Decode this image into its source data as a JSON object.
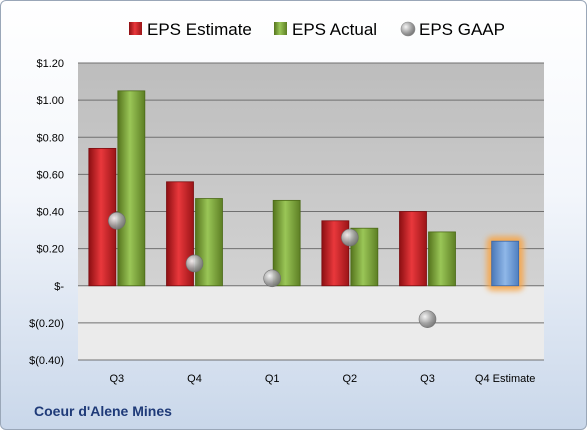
{
  "company": "Coeur d'Alene Mines",
  "chart_data": {
    "type": "bar",
    "categories": [
      "Q3",
      "Q4",
      "Q1",
      "Q2",
      "Q3",
      "Q4 Estimate"
    ],
    "y_tick_labels": [
      "$(0.40)",
      "$(0.20)",
      "$-",
      "$0.20",
      "$0.40",
      "$0.60",
      "$0.80",
      "$1.00",
      "$1.20"
    ],
    "ylim": [
      -0.4,
      1.2
    ],
    "series": [
      {
        "name": "EPS Estimate",
        "color": "#d8262b",
        "values": [
          0.74,
          0.56,
          null,
          0.35,
          0.4,
          null
        ]
      },
      {
        "name": "EPS Actual",
        "color": "#7fa83a",
        "values": [
          1.05,
          0.47,
          0.46,
          0.31,
          0.29,
          null
        ]
      },
      {
        "name": "EPS GAAP",
        "color": "#a7a7a7",
        "values": [
          0.35,
          0.12,
          0.04,
          0.26,
          -0.18,
          null
        ]
      }
    ],
    "forecast": {
      "category_index": 5,
      "value": 0.24,
      "color": "#6f9fd8",
      "glow": "#f7a649"
    },
    "grid": true,
    "legend": "top"
  }
}
